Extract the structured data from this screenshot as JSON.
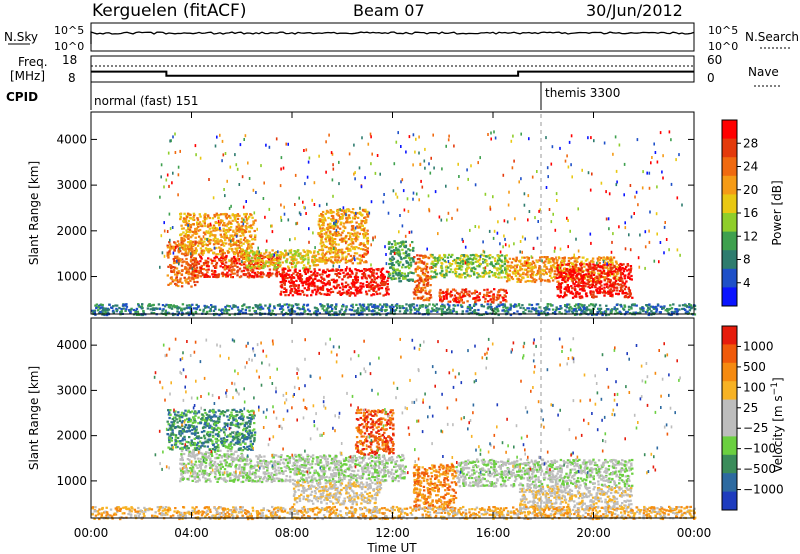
{
  "header": {
    "station": "Kerguelen (fitACF)",
    "beam": "Beam 07",
    "date": "30/Jun/2012"
  },
  "nsky_panel": {
    "label": "N.Sky",
    "ticks": [
      "10^5",
      "10^0"
    ],
    "right_label": "N.Search",
    "right_ticks": [
      "10^5",
      "10^0"
    ]
  },
  "freq_panel": {
    "label_line1": "Freq.",
    "label_line2": "[MHz]",
    "ticks": [
      "18",
      "8"
    ],
    "right_label": "Nave",
    "right_ticks": [
      "60",
      "0"
    ],
    "frequency_mhz": [
      {
        "from_h": 0.0,
        "to_h": 3.0,
        "value": 12.0
      },
      {
        "from_h": 3.0,
        "to_h": 17.0,
        "value": 10.4
      },
      {
        "from_h": 17.0,
        "to_h": 24.0,
        "value": 12.0
      }
    ]
  },
  "cpid_panel": {
    "label": "CPID",
    "modes": [
      {
        "label": "normal (fast) 151",
        "from_h": 0.0,
        "to_h": 18.0
      },
      {
        "label": "themis 3300",
        "from_h": 18.0,
        "to_h": 24.0
      }
    ]
  },
  "x_axis": {
    "title": "Time UT",
    "ticks": [
      "00:00",
      "04:00",
      "08:00",
      "12:00",
      "16:00",
      "20:00",
      "00:00"
    ],
    "range_hours": [
      0,
      24
    ]
  },
  "chart_data": [
    {
      "type": "heatmap",
      "name": "power",
      "ylabel": "Slant Range [km]",
      "ylim": [
        180,
        4600
      ],
      "yticks": [
        "1000",
        "2000",
        "3000",
        "4000"
      ],
      "colorbar": {
        "label": "Power [dB]",
        "ticks": [
          "4",
          "8",
          "12",
          "16",
          "20",
          "24",
          "28"
        ],
        "colors": [
          "#0a14ff",
          "#1e50c8",
          "#2e7c6e",
          "#3ea04e",
          "#8fce2a",
          "#e9c812",
          "#f59b16",
          "#f06a10",
          "#e43a0c",
          "#ff0000"
        ]
      },
      "echo_regions": [
        {
          "t0": 3.0,
          "t1": 4.2,
          "r0": 800,
          "r1": 1800,
          "level": 7
        },
        {
          "t0": 3.5,
          "t1": 6.5,
          "r0": 1500,
          "r1": 2400,
          "level": 6
        },
        {
          "t0": 4.0,
          "t1": 7.5,
          "r0": 1000,
          "r1": 1500,
          "level": 8
        },
        {
          "t0": 6.0,
          "t1": 9.0,
          "r0": 1200,
          "r1": 1600,
          "level": 5
        },
        {
          "t0": 7.5,
          "t1": 11.8,
          "r0": 600,
          "r1": 1200,
          "level": 9
        },
        {
          "t0": 9.0,
          "t1": 11.0,
          "r0": 1300,
          "r1": 2500,
          "level": 6
        },
        {
          "t0": 11.8,
          "t1": 12.8,
          "r0": 900,
          "r1": 1800,
          "level": 3
        },
        {
          "t0": 12.8,
          "t1": 13.5,
          "r0": 500,
          "r1": 1500,
          "level": 7
        },
        {
          "t0": 13.5,
          "t1": 16.5,
          "r0": 1000,
          "r1": 1500,
          "level": 4
        },
        {
          "t0": 13.8,
          "t1": 16.5,
          "r0": 450,
          "r1": 750,
          "level": 8
        },
        {
          "t0": 16.5,
          "t1": 21.0,
          "r0": 900,
          "r1": 1450,
          "level": 6
        },
        {
          "t0": 18.5,
          "t1": 21.5,
          "r0": 550,
          "r1": 1300,
          "level": 9
        },
        {
          "t0": 0.0,
          "t1": 24.0,
          "r0": 180,
          "r1": 420,
          "level": 2
        }
      ]
    },
    {
      "type": "heatmap",
      "name": "velocity",
      "ylabel": "Slant Range [km]",
      "ylim": [
        180,
        4600
      ],
      "yticks": [
        "1000",
        "2000",
        "3000",
        "4000"
      ],
      "colorbar": {
        "label": "Velocity [m s^-1]",
        "ticks": [
          "1000",
          "500",
          "100",
          "25",
          "−25",
          "−100",
          "−500",
          "−1000"
        ],
        "colors": [
          "#1e3cbe",
          "#2d6aa0",
          "#3a8c5a",
          "#6bd040",
          "#bdbdbd",
          "#bdbdbd",
          "#f7b224",
          "#f58a10",
          "#f05a0a",
          "#e61c0c"
        ]
      },
      "echo_regions": [
        {
          "t0": 3.0,
          "t1": 6.5,
          "r0": 1700,
          "r1": 2600,
          "level": 2
        },
        {
          "t0": 3.5,
          "t1": 6.0,
          "r0": 1000,
          "r1": 1700,
          "level": 4
        },
        {
          "t0": 6.0,
          "t1": 12.5,
          "r0": 1000,
          "r1": 1600,
          "level": 4
        },
        {
          "t0": 8.0,
          "t1": 11.5,
          "r0": 500,
          "r1": 1000,
          "level": 5
        },
        {
          "t0": 10.5,
          "t1": 12.0,
          "r0": 1600,
          "r1": 2600,
          "level": 8
        },
        {
          "t0": 12.8,
          "t1": 14.5,
          "r0": 400,
          "r1": 1400,
          "level": 7
        },
        {
          "t0": 14.5,
          "t1": 21.5,
          "r0": 900,
          "r1": 1500,
          "level": 4
        },
        {
          "t0": 17.0,
          "t1": 21.5,
          "r0": 400,
          "r1": 900,
          "level": 5
        },
        {
          "t0": 0.0,
          "t1": 24.0,
          "r0": 180,
          "r1": 450,
          "level": 6
        }
      ]
    }
  ]
}
